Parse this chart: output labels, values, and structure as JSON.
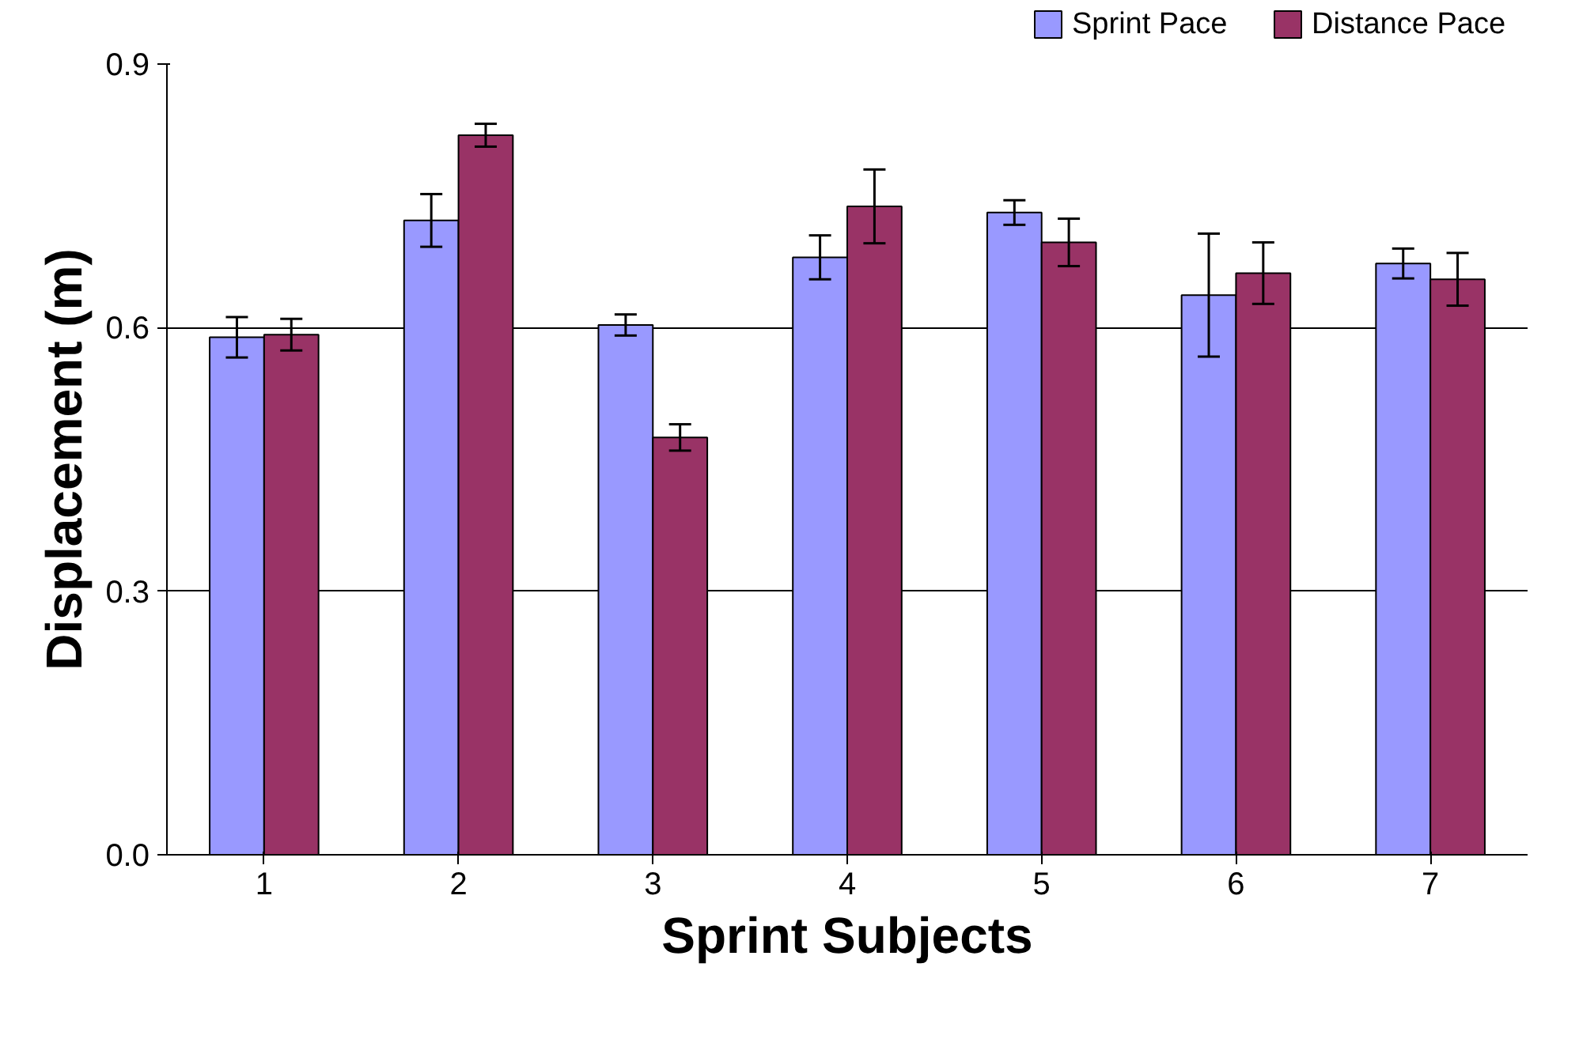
{
  "chart_data": {
    "type": "bar",
    "xlabel": "Sprint Subjects",
    "ylabel": "Displacement (m)",
    "categories": [
      "1",
      "2",
      "3",
      "4",
      "5",
      "6",
      "7"
    ],
    "series": [
      {
        "name": "Sprint Pace",
        "color": "#9999ff",
        "values": [
          0.589,
          0.722,
          0.603,
          0.68,
          0.731,
          0.637,
          0.673
        ],
        "errors": [
          0.023,
          0.03,
          0.012,
          0.025,
          0.014,
          0.07,
          0.017
        ]
      },
      {
        "name": "Distance Pace",
        "color": "#993366",
        "values": [
          0.592,
          0.819,
          0.475,
          0.738,
          0.697,
          0.662,
          0.655
        ],
        "errors": [
          0.018,
          0.013,
          0.015,
          0.042,
          0.027,
          0.035,
          0.03
        ]
      }
    ],
    "ylim": [
      0,
      0.9
    ],
    "yticks": [
      {
        "value": 0,
        "label": "0.0"
      },
      {
        "value": 0.3,
        "label": "0.3"
      },
      {
        "value": 0.6,
        "label": "0.6"
      },
      {
        "value": 0.9,
        "label": "0.9"
      }
    ],
    "grid": "y",
    "legend": "top right"
  }
}
